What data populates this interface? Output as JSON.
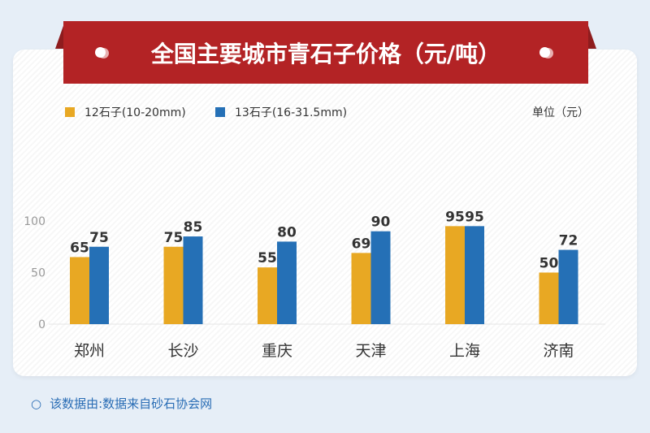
{
  "title": "全国主要城市青石子价格（元/吨）",
  "unit": "单位（元）",
  "footer": "该数据由:数据来自砂石协会网",
  "footer_icon": "circle-outline-icon",
  "chart_data": {
    "type": "bar",
    "title": "全国主要城市青石子价格（元/吨）",
    "categories": [
      "郑州",
      "长沙",
      "重庆",
      "天津",
      "上海",
      "济南"
    ],
    "series": [
      {
        "name": "12石子(10-20mm)",
        "color": "#e8a823",
        "values": [
          65,
          75,
          55,
          69,
          95,
          50
        ]
      },
      {
        "name": "13石子(16-31.5mm)",
        "color": "#2570b6",
        "values": [
          75,
          85,
          80,
          90,
          95,
          72
        ]
      }
    ],
    "yticks": [
      0,
      50,
      100
    ],
    "ylim": [
      0,
      100
    ],
    "grid": false,
    "legend": "top-left"
  }
}
